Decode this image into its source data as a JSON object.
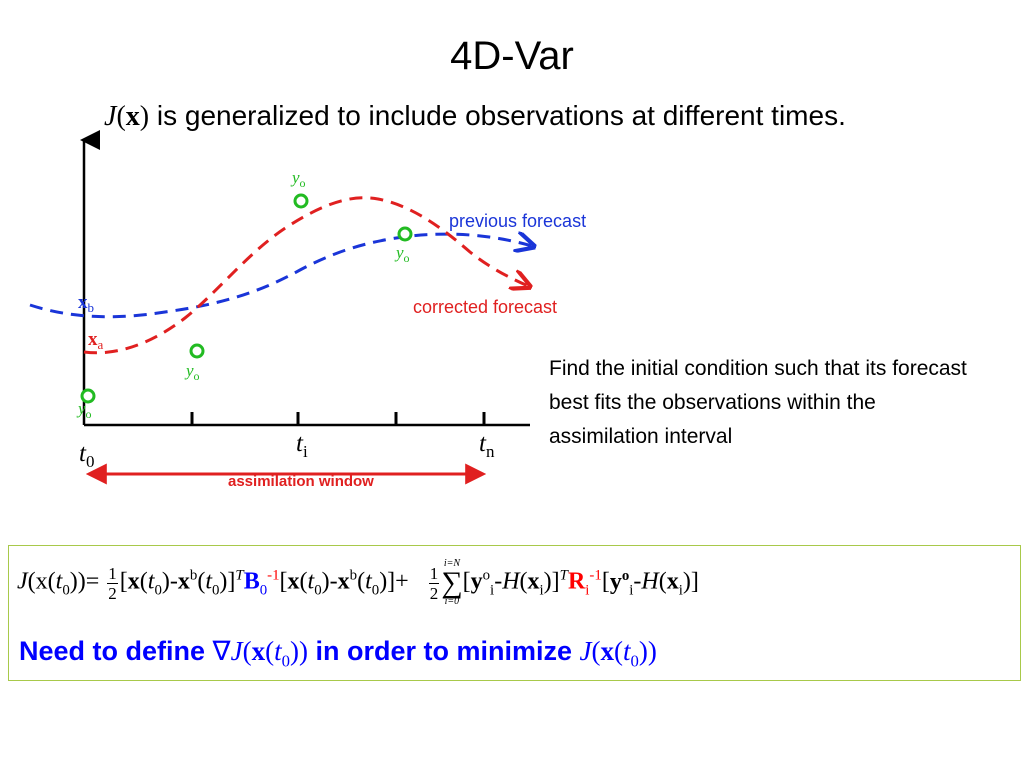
{
  "slide": {
    "title": "4D-Var",
    "subtitle": {
      "J": "J",
      "x": "x",
      "text": " is generalized to include observations at different times."
    }
  },
  "diagram": {
    "labels": {
      "previous_forecast": "previous forecast",
      "corrected_forecast": "corrected forecast",
      "assimilation_window": "assimilation window",
      "x_b": "x",
      "x_b_sub": "b",
      "x_a": "x",
      "x_a_sub": "a",
      "y_o": "y",
      "y_o_sub": "o",
      "t0": "t",
      "t0_sub": "0",
      "ti": "t",
      "ti_sub": "i",
      "tn": "t",
      "tn_sub": "n"
    },
    "colors": {
      "previous_forecast": "#1a35d8",
      "corrected_forecast": "#e02020",
      "observations": "#22bb22",
      "assimilation_window": "#e02020",
      "axis": "#000000"
    }
  },
  "note": "Find the initial condition such that its forecast best fits the observations within the assimilation interval",
  "equation": {
    "lhs": "J(x(t0))=",
    "half": "1",
    "half_den": "2",
    "sum_upper": "i=N",
    "sum_lower": "i=0",
    "sum_sign": "∑",
    "B": "B",
    "R": "R"
  },
  "need_line": {
    "prefix": "Need to define ",
    "nabla": "∇",
    "middle": " in order to minimize "
  }
}
